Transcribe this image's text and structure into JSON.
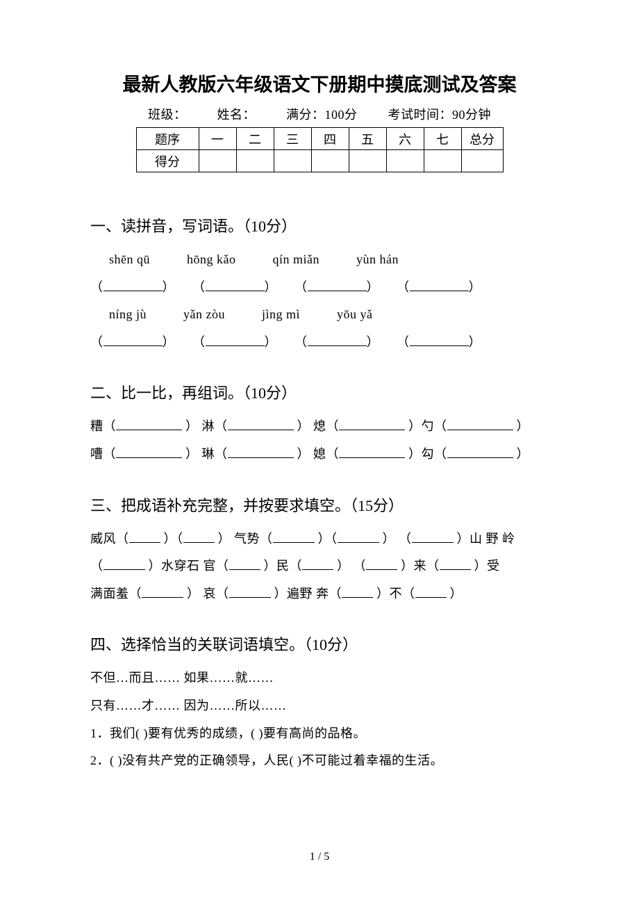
{
  "title": "最新人教版六年级语文下册期中摸底测试及答案",
  "info": {
    "class_label": "班级：",
    "name_label": "姓名：",
    "full_score_label": "满分：100分",
    "time_label": "考试时间：90分钟"
  },
  "score_table": {
    "row1_label": "题序",
    "cols": [
      "一",
      "二",
      "三",
      "四",
      "五",
      "六",
      "七",
      "总分"
    ],
    "row2_label": "得分"
  },
  "sec1": {
    "heading": "一、读拼音，写词语。（10分）",
    "pinyin_r1": [
      "shēn qū",
      "hōng kǎo",
      "qín miǎn",
      "yùn hán"
    ],
    "pinyin_r2": [
      "níng jù",
      "yǎn zòu",
      "jìng mì",
      "yōu yǎ"
    ]
  },
  "sec2": {
    "heading": "二、比一比，再组词。（10分）",
    "r1": [
      "糟（",
      "） 淋（",
      "） 熄（",
      "）勺（",
      "）"
    ],
    "r2": [
      "嘈（",
      "） 琳（",
      "） 媳（",
      "）勾（",
      "）"
    ]
  },
  "sec3": {
    "heading": "三、把成语补充完整，并按要求填空。（15分）",
    "line1_a": "威风（",
    "line1_b": "）（",
    "line1_c": "）   气势（",
    "line1_d": "）（",
    "line1_e": "）   （",
    "line1_f": "）山 野 岭",
    "line2_a": "（",
    "line2_b": "）水穿石    官（",
    "line2_c": "）民（",
    "line2_d": "）   （",
    "line2_e": "）来（",
    "line2_f": "）受",
    "line3_a": "满面羞（",
    "line3_b": "）    哀（",
    "line3_c": "）遍野    奔（",
    "line3_d": "）不（",
    "line3_e": "）"
  },
  "sec4": {
    "heading": "四、选择恰当的关联词语填空。（10分）",
    "opt1": "不但…而且……   如果……就……",
    "opt2": "只有……才……   因为……所以……",
    "q1": "1．我们(    )要有优秀的成绩，(    )要有高尚的品格。",
    "q2": "2．(    )没有共产党的正确领导，人民(    )不可能过着幸福的生活。"
  },
  "footer": "1 / 5"
}
